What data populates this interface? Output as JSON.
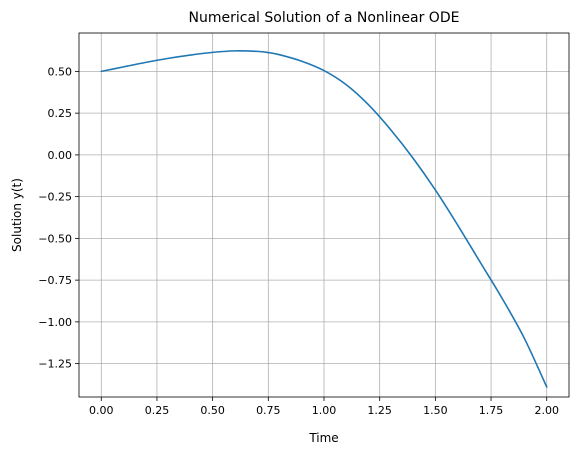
{
  "chart_data": {
    "type": "line",
    "title": "Numerical Solution of a Nonlinear ODE",
    "xlabel": "Time",
    "ylabel": "Solution y(t)",
    "xlim": [
      -0.1,
      2.1
    ],
    "ylim": [
      -1.45,
      0.73
    ],
    "grid": true,
    "legend": "none",
    "x_ticks": [
      {
        "value": 0.0,
        "label": "0.00"
      },
      {
        "value": 0.25,
        "label": "0.25"
      },
      {
        "value": 0.5,
        "label": "0.50"
      },
      {
        "value": 0.75,
        "label": "0.75"
      },
      {
        "value": 1.0,
        "label": "1.00"
      },
      {
        "value": 1.25,
        "label": "1.25"
      },
      {
        "value": 1.5,
        "label": "1.50"
      },
      {
        "value": 1.75,
        "label": "1.75"
      },
      {
        "value": 2.0,
        "label": "2.00"
      }
    ],
    "y_ticks": [
      {
        "value": 0.5,
        "label": "0.50"
      },
      {
        "value": 0.25,
        "label": "0.25"
      },
      {
        "value": 0.0,
        "label": "0.00"
      },
      {
        "value": -0.25,
        "label": "−0.25"
      },
      {
        "value": -0.5,
        "label": "−0.50"
      },
      {
        "value": -0.75,
        "label": "−0.75"
      },
      {
        "value": -1.0,
        "label": "−1.00"
      },
      {
        "value": -1.25,
        "label": "−1.25"
      }
    ],
    "series": [
      {
        "color": "#1f77b4",
        "x": [
          0.0,
          0.1,
          0.2,
          0.3,
          0.4,
          0.5,
          0.6,
          0.7,
          0.75,
          0.8,
          0.9,
          1.0,
          1.1,
          1.2,
          1.3,
          1.4,
          1.5,
          1.6,
          1.7,
          1.8,
          1.9,
          2.0
        ],
        "y": [
          0.5,
          0.527,
          0.554,
          0.578,
          0.598,
          0.614,
          0.623,
          0.62,
          0.613,
          0.6,
          0.561,
          0.505,
          0.42,
          0.3,
          0.15,
          -0.02,
          -0.21,
          -0.42,
          -0.64,
          -0.86,
          -1.1,
          -1.39
        ]
      }
    ]
  }
}
